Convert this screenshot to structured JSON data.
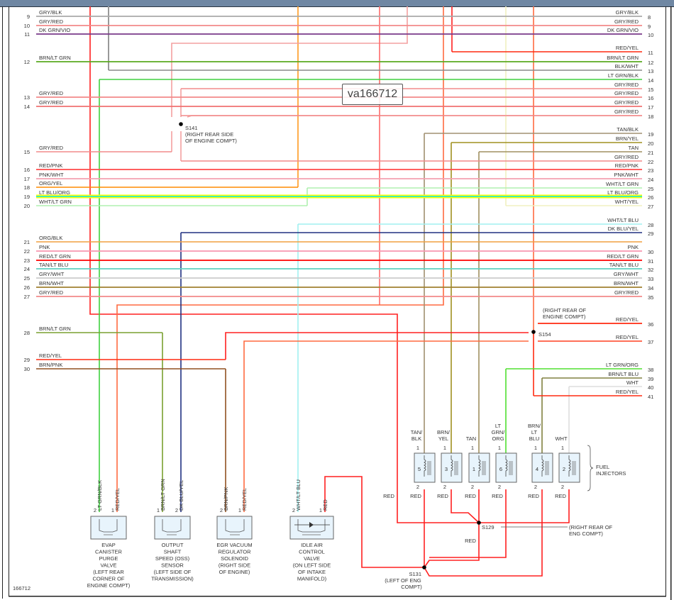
{
  "diagram_id": "166712",
  "watermark": "va166712",
  "left_wires": [
    {
      "pin": "9",
      "label": "GRY/BLK",
      "color": "#aaaaaa"
    },
    {
      "pin": "10",
      "label": "GRY/RED",
      "color": "#f28a8a"
    },
    {
      "pin": "11",
      "label": "DK GRN/VIO",
      "color": "#7a3a8a"
    },
    {
      "pin": "12",
      "label": "BRN/LT GRN",
      "color": "#5aaa20"
    },
    {
      "pin": "13",
      "label": "GRY/RED",
      "color": "#f28a8a"
    },
    {
      "pin": "14",
      "label": "GRY/RED",
      "color": "#f07070"
    },
    {
      "pin": "15",
      "label": "GRY/RED",
      "color": "#f28a8a"
    },
    {
      "pin": "16",
      "label": "RED/PNK",
      "color": "#ff4a4a"
    },
    {
      "pin": "17",
      "label": "PNK/WHT",
      "color": "#f4a0b0"
    },
    {
      "pin": "18",
      "label": "ORG/YEL",
      "color": "#ff8c00"
    },
    {
      "pin": "19",
      "label": "LT BLU/ORG",
      "color": "#ffff00"
    },
    {
      "pin": "20",
      "label": "WHT/LT GRN",
      "color": "#b0f0b0"
    },
    {
      "pin": "21",
      "label": "ORG/BLK",
      "color": "#f0a040"
    },
    {
      "pin": "22",
      "label": "PNK",
      "color": "#f898b0"
    },
    {
      "pin": "23",
      "label": "RED/LT GRN",
      "color": "#ff0000"
    },
    {
      "pin": "24",
      "label": "TAN/LT BLU",
      "color": "#60d0c0"
    },
    {
      "pin": "25",
      "label": "GRY/WHT",
      "color": "#cccccc"
    },
    {
      "pin": "26",
      "label": "BRN/WHT",
      "color": "#a08030"
    },
    {
      "pin": "27",
      "label": "GRY/RED",
      "color": "#f28a8a"
    },
    {
      "pin": "28",
      "label": "BRN/LT GRN",
      "color": "#7aa030"
    },
    {
      "pin": "29",
      "label": "RED/YEL",
      "color": "#ff2a10"
    },
    {
      "pin": "30",
      "label": "BRN/PNK",
      "color": "#905020"
    }
  ],
  "right_wires": [
    {
      "pin": "8",
      "label": "GRY/BLK",
      "color": "#aaaaaa"
    },
    {
      "pin": "9",
      "label": "GRY/RED",
      "color": "#f28a8a"
    },
    {
      "pin": "10",
      "label": "DK GRN/VIO",
      "color": "#7a3a8a"
    },
    {
      "pin": "11",
      "label": "RED/YEL",
      "color": "#ff2a10"
    },
    {
      "pin": "12",
      "label": "BRN/LT GRN",
      "color": "#5aaa20"
    },
    {
      "pin": "13",
      "label": "BLK/WHT",
      "color": "#888888"
    },
    {
      "pin": "14",
      "label": "LT GRN/BLK",
      "color": "#40d040"
    },
    {
      "pin": "15",
      "label": "GRY/RED",
      "color": "#f28a8a"
    },
    {
      "pin": "16",
      "label": "GRY/RED",
      "color": "#f28a8a"
    },
    {
      "pin": "17",
      "label": "GRY/RED",
      "color": "#f07070"
    },
    {
      "pin": "18",
      "label": "GRY/RED",
      "color": "#f28a8a"
    },
    {
      "pin": "19",
      "label": "TAN/BLK",
      "color": "#a09070"
    },
    {
      "pin": "20",
      "label": "BRN/YEL",
      "color": "#a09020"
    },
    {
      "pin": "21",
      "label": "TAN",
      "color": "#a09060"
    },
    {
      "pin": "22",
      "label": "GRY/RED",
      "color": "#f28a8a"
    },
    {
      "pin": "23",
      "label": "RED/PNK",
      "color": "#ff4a4a"
    },
    {
      "pin": "24",
      "label": "PNK/WHT",
      "color": "#f4a0b0"
    },
    {
      "pin": "25",
      "label": "WHT/LT GRN",
      "color": "#b0f0b0"
    },
    {
      "pin": "26",
      "label": "LT BLU/ORG",
      "color": "#ffff00"
    },
    {
      "pin": "27",
      "label": "WHT/YEL",
      "color": "#f0f0c0"
    },
    {
      "pin": "28",
      "label": "WHT/LT BLU",
      "color": "#a0f0f0"
    },
    {
      "pin": "29",
      "label": "DK BLU/YEL",
      "color": "#203080"
    },
    {
      "pin": "30",
      "label": "PNK",
      "color": "#f898b0"
    },
    {
      "pin": "31",
      "label": "RED/LT GRN",
      "color": "#ff0000"
    },
    {
      "pin": "32",
      "label": "TAN/LT BLU",
      "color": "#60d0c0"
    },
    {
      "pin": "33",
      "label": "GRY/WHT",
      "color": "#cccccc"
    },
    {
      "pin": "34",
      "label": "BRN/WHT",
      "color": "#a08030"
    },
    {
      "pin": "35",
      "label": "GRY/RED",
      "color": "#f28a8a"
    },
    {
      "pin": "36",
      "label": "RED/YEL",
      "color": "#ff2a10"
    },
    {
      "pin": "37",
      "label": "RED/YEL",
      "color": "#ff4020"
    },
    {
      "pin": "38",
      "label": "LT GRN/ORG",
      "color": "#50e030"
    },
    {
      "pin": "39",
      "label": "BRN/LT BLU",
      "color": "#808040"
    },
    {
      "pin": "40",
      "label": "WHT",
      "color": "#dddddd"
    },
    {
      "pin": "41",
      "label": "RED/YEL",
      "color": "#ff2a10"
    }
  ],
  "splices": [
    {
      "id": "S141",
      "location": [
        "(RIGHT REAR SIDE",
        "OF ENGINE COMPT)"
      ]
    },
    {
      "id": "S154",
      "location": [
        "(RIGHT REAR OF",
        "ENGINE COMPT)"
      ]
    },
    {
      "id": "S129",
      "location": [
        "(RIGHT REAR OF",
        "ENG COMPT)"
      ]
    },
    {
      "id": "S131",
      "location": [
        "(LEFT OF ENG",
        "COMPT)"
      ]
    }
  ],
  "components": [
    {
      "name": [
        "EVAP",
        "CANISTER",
        "PURGE",
        "VALVE",
        "(LEFT REAR",
        "CORNER OF",
        "ENGINE COMPT)"
      ],
      "pins": [
        {
          "n": "2",
          "wire": "LT GRN/BLK"
        },
        {
          "n": "1",
          "wire": "RED/YEL"
        }
      ]
    },
    {
      "name": [
        "OUTPUT",
        "SHAFT",
        "SPEED (OSS)",
        "SENSOR",
        "(LEFT SIDE OF",
        "TRANSMISSION)"
      ],
      "pins": [
        {
          "n": "1",
          "wire": "BRN/LT GRN"
        },
        {
          "n": "2",
          "wire": "DK BLU/YEL"
        }
      ]
    },
    {
      "name": [
        "EGR VACUUM",
        "REGULATOR",
        "SOLENOID",
        "(RIGHT SIDE",
        "OF ENGINE)"
      ],
      "pins": [
        {
          "n": "2",
          "wire": "BRN/PNK"
        },
        {
          "n": "1",
          "wire": "RED/YEL"
        }
      ]
    },
    {
      "name": [
        "IDLE AIR",
        "CONTROL",
        "VALVE",
        "(ON LEFT SIDE",
        "OF INTAKE",
        "MANIFOLD)"
      ],
      "pins": [
        {
          "n": "2",
          "wire": "WHT/LT BLU"
        },
        {
          "n": "1",
          "wire": "RED"
        }
      ]
    }
  ],
  "injectors": {
    "group_label": [
      "FUEL",
      "INJECTORS"
    ],
    "items": [
      {
        "number": "5",
        "wire": [
          "TAN/",
          "BLK"
        ],
        "ground": "RED"
      },
      {
        "number": "3",
        "wire": [
          "BRN/",
          "YEL"
        ],
        "ground": "RED"
      },
      {
        "number": "1",
        "wire": [
          "TAN"
        ],
        "ground": "RED"
      },
      {
        "number": "6",
        "wire": [
          "LT",
          "GRN/",
          "ORG"
        ],
        "ground": "RED"
      },
      {
        "number": "4",
        "wire": [
          "BRN/",
          "LT",
          "BLU"
        ],
        "ground": "RED"
      },
      {
        "number": "2",
        "wire": [
          "WHT"
        ],
        "ground": "RED"
      }
    ],
    "pin_top": "1",
    "pin_bottom": "2"
  },
  "misc_labels": {
    "red_left": "RED",
    "red_mid": "RED",
    "iac_red": "RED"
  }
}
